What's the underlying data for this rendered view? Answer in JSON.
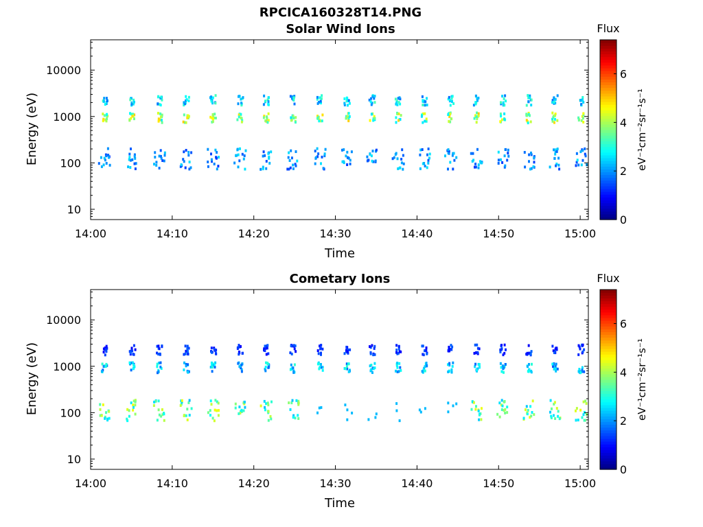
{
  "figure": {
    "title": "RPCICA160328T14.PNG",
    "colormap": [
      "#00007f",
      "#0000ff",
      "#007fff",
      "#00ffff",
      "#7fff7f",
      "#ffff00",
      "#ff7f00",
      "#ff0000",
      "#7f0000"
    ]
  },
  "chart_data": [
    {
      "type": "heatmap",
      "title": "Solar Wind Ions",
      "xlabel": "Time",
      "ylabel": "Energy (eV)",
      "x_ticks": [
        "14:00",
        "14:10",
        "14:20",
        "14:30",
        "14:40",
        "14:50",
        "15:00"
      ],
      "xlim": [
        "14:00",
        "15:01"
      ],
      "y_ticks": [
        "10",
        "100",
        "1000",
        "10000"
      ],
      "yscale": "log",
      "ylim": [
        6,
        45000
      ],
      "colorbar": {
        "label": "Flux",
        "unit": "eV⁻¹cm⁻²sr⁻¹s⁻¹",
        "ticks": [
          "0",
          "2",
          "4",
          "6"
        ],
        "range": [
          0,
          7.4
        ]
      },
      "sweep_minutes": [
        1.6,
        5.0,
        8.3,
        11.6,
        14.9,
        18.2,
        21.4,
        24.7,
        28.0,
        31.3,
        34.4,
        37.6,
        40.8,
        44.0,
        47.2,
        50.4,
        53.6,
        56.8,
        60.0
      ],
      "bands": [
        {
          "energy_eV": 1000,
          "flux": 4.2
        },
        {
          "energy_eV": 2400,
          "flux": 2.8
        },
        {
          "energy_eV": 130,
          "flux": 2.2
        }
      ]
    },
    {
      "type": "heatmap",
      "title": "Cometary Ions",
      "xlabel": "Time",
      "ylabel": "Energy (eV)",
      "x_ticks": [
        "14:00",
        "14:10",
        "14:20",
        "14:30",
        "14:40",
        "14:50",
        "15:00"
      ],
      "xlim": [
        "14:00",
        "15:01"
      ],
      "y_ticks": [
        "10",
        "100",
        "1000",
        "10000"
      ],
      "yscale": "log",
      "ylim": [
        6,
        45000
      ],
      "colorbar": {
        "label": "Flux",
        "unit": "eV⁻¹cm⁻²sr⁻¹s⁻¹",
        "ticks": [
          "0",
          "2",
          "4",
          "6"
        ],
        "range": [
          0,
          7.4
        ]
      },
      "sweep_minutes": [
        1.6,
        5.0,
        8.3,
        11.6,
        14.9,
        18.2,
        21.4,
        24.7,
        28.0,
        31.3,
        34.4,
        37.6,
        40.8,
        44.0,
        47.2,
        50.4,
        53.6,
        56.8,
        60.0
      ],
      "bands": [
        {
          "energy_eV": 1000,
          "flux": 2.6
        },
        {
          "energy_eV": 2400,
          "flux": 1.4
        },
        {
          "energy_eV": 120,
          "flux": 3.8
        }
      ]
    }
  ]
}
